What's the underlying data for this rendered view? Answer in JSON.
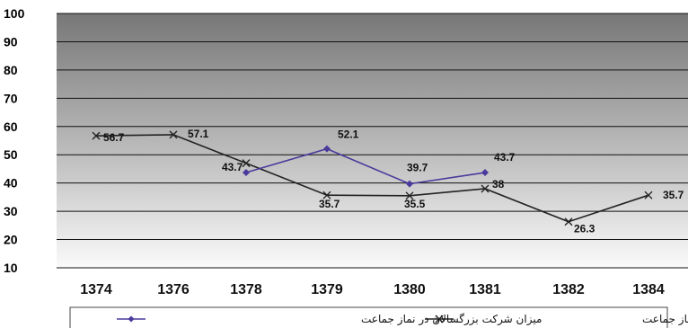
{
  "chart_data": {
    "type": "line",
    "categories": [
      "1374",
      "1376",
      "1378",
      "1379",
      "1380",
      "1381",
      "1382",
      "1384"
    ],
    "ylim": [
      10,
      100
    ],
    "yticks": [
      10,
      20,
      30,
      40,
      50,
      60,
      70,
      80,
      90,
      100
    ],
    "grid": true,
    "legend_position": "bottom",
    "series": [
      {
        "name": "میزان شرکت جوانان در نماز جماعت",
        "marker": "x",
        "color": "#222222",
        "values": [
          56.7,
          57.1,
          null,
          35.7,
          35.5,
          38,
          26.3,
          35.7
        ],
        "labels": [
          "56.7",
          "57.1",
          null,
          "35.7",
          "35.5",
          "38",
          "26.3",
          "35.7"
        ]
      },
      {
        "name": "میزان شرکت بزرگسالان در نماز جماعت",
        "marker": "diamond",
        "color": "#4a3a9c",
        "values": [
          null,
          null,
          43.7,
          52.1,
          39.7,
          43.7,
          null,
          null
        ],
        "labels": [
          null,
          null,
          "43.7",
          "52.1",
          "39.7",
          "43.7",
          null,
          null
        ]
      }
    ],
    "extra_point": {
      "series": 0,
      "category_index": 2,
      "value": 47
    }
  }
}
